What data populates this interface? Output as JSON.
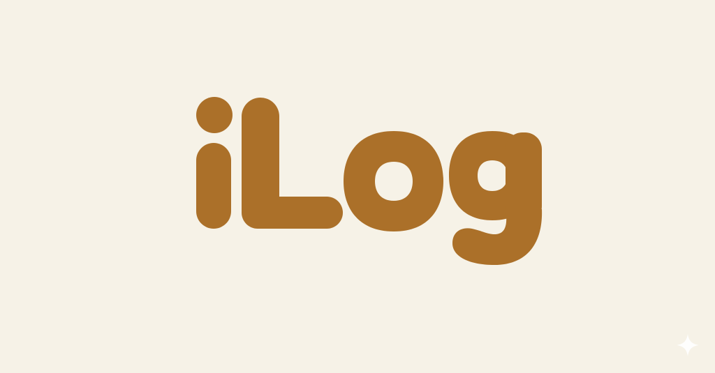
{
  "logo": {
    "wordmark": "iLog",
    "color": "#ab7029"
  },
  "background": {
    "color": "#f6f2e7"
  },
  "watermark": {
    "icon": "sparkle-icon",
    "color": "#ffffff"
  }
}
